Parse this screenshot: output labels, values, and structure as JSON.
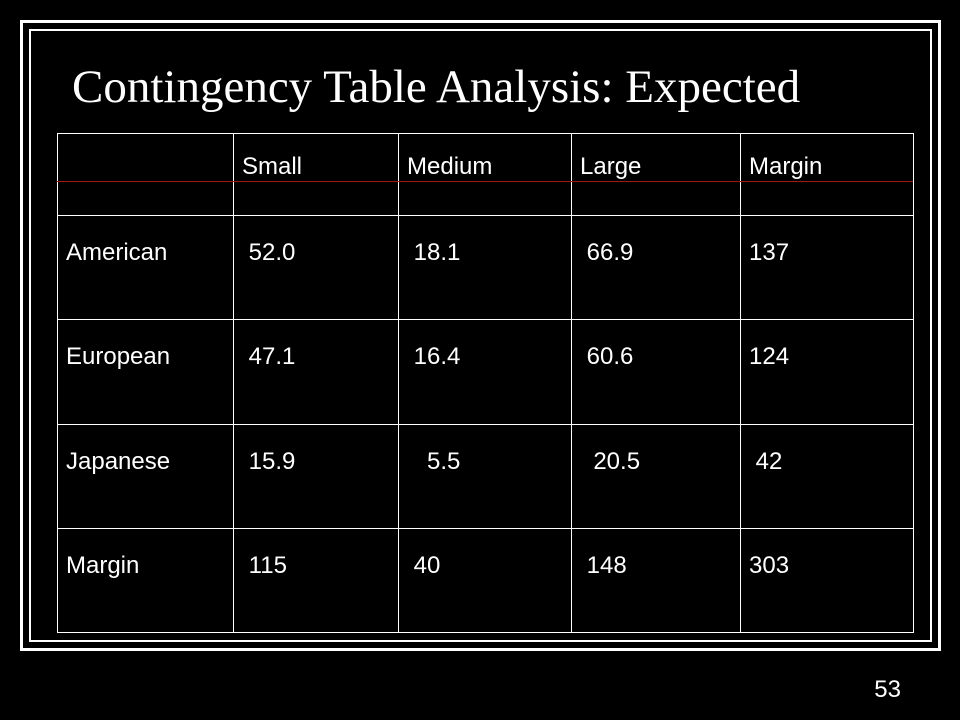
{
  "slide": {
    "title": "Contingency Table Analysis: Expected",
    "number": "53"
  },
  "table": {
    "header": [
      "",
      "Small",
      "Medium",
      "Large",
      "Margin"
    ],
    "rows": [
      [
        "American",
        " 52.0",
        " 18.1",
        " 66.9",
        "137"
      ],
      [
        "European",
        " 47.1",
        " 16.4",
        " 60.6",
        "124"
      ],
      [
        "Japanese",
        " 15.9",
        "   5.5",
        "  20.5",
        " 42"
      ],
      [
        "Margin",
        " 115",
        " 40",
        " 148",
        "303"
      ]
    ]
  },
  "colors": {
    "background": "#000000",
    "text": "#ffffff",
    "accent_line": "#a01818"
  }
}
